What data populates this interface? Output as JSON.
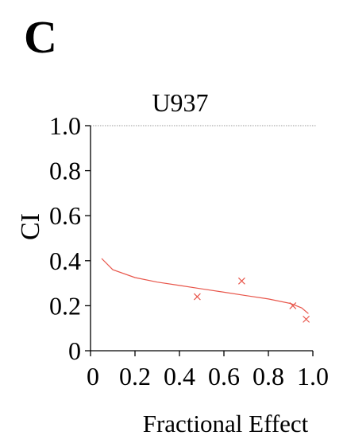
{
  "panel_label": "C",
  "chart_data": {
    "type": "scatter",
    "title": "U937",
    "xlabel": "Fractional Effect",
    "ylabel": "CI",
    "xlim": [
      0,
      1.0
    ],
    "ylim": [
      0,
      1.0
    ],
    "x_ticks": [
      "0",
      "0.2",
      "0.4",
      "0.6",
      "0.8",
      "1.0"
    ],
    "y_ticks": [
      "0",
      "0.2",
      "0.4",
      "0.6",
      "0.8",
      "1.0"
    ],
    "reference_line_y": 1.0,
    "series": [
      {
        "marker": "x",
        "color": "#e8554a",
        "points": [
          {
            "x": 0.48,
            "y": 0.24
          },
          {
            "x": 0.68,
            "y": 0.31
          },
          {
            "x": 0.91,
            "y": 0.2
          },
          {
            "x": 0.97,
            "y": 0.14
          }
        ]
      },
      {
        "line": true,
        "color": "#e8554a",
        "points": [
          {
            "x": 0.05,
            "y": 0.41
          },
          {
            "x": 0.1,
            "y": 0.36
          },
          {
            "x": 0.2,
            "y": 0.325
          },
          {
            "x": 0.3,
            "y": 0.305
          },
          {
            "x": 0.4,
            "y": 0.29
          },
          {
            "x": 0.5,
            "y": 0.275
          },
          {
            "x": 0.6,
            "y": 0.26
          },
          {
            "x": 0.7,
            "y": 0.245
          },
          {
            "x": 0.8,
            "y": 0.23
          },
          {
            "x": 0.9,
            "y": 0.21
          },
          {
            "x": 0.95,
            "y": 0.19
          },
          {
            "x": 0.98,
            "y": 0.165
          }
        ]
      }
    ]
  }
}
